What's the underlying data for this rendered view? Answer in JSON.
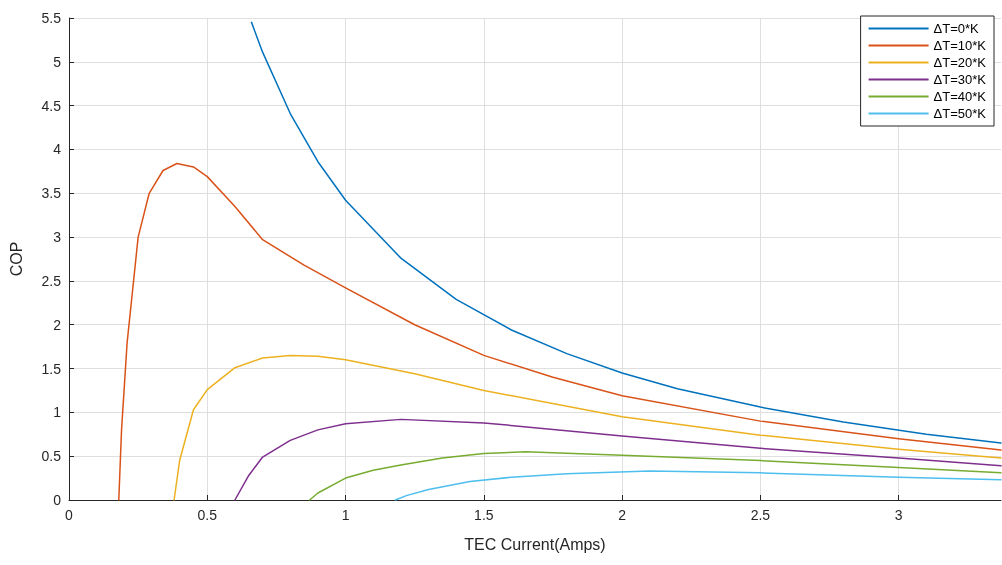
{
  "chart_data": {
    "type": "line",
    "xlabel": "TEC Current(Amps)",
    "ylabel": "COP",
    "xlim": [
      0,
      3.37
    ],
    "ylim": [
      0,
      5.5
    ],
    "xticks": [
      0,
      0.5,
      1,
      1.5,
      2,
      2.5,
      3
    ],
    "yticks": [
      0,
      0.5,
      1,
      1.5,
      2,
      2.5,
      3,
      3.5,
      4,
      4.5,
      5,
      5.5
    ],
    "grid": true,
    "legend": "top right",
    "line_style": "solid",
    "series": [
      {
        "name": "ΔT=0*K",
        "color": "#0072bd",
        "x": [
          0.66,
          0.7,
          0.8,
          0.9,
          1,
          1.2,
          1.4,
          1.6,
          1.8,
          2,
          2.2,
          2.5,
          2.8,
          3.1,
          3.37
        ],
        "values": [
          5.45,
          5.11,
          4.41,
          3.86,
          3.42,
          2.76,
          2.29,
          1.94,
          1.67,
          1.45,
          1.27,
          1.06,
          0.89,
          0.75,
          0.65
        ]
      },
      {
        "name": "ΔT=10*K",
        "color": "#d95319",
        "x": [
          0.18,
          0.19,
          0.21,
          0.25,
          0.29,
          0.34,
          0.39,
          0.45,
          0.5,
          0.6,
          0.7,
          0.85,
          1,
          1.25,
          1.5,
          1.75,
          2,
          2.5,
          3,
          3.37
        ],
        "values": [
          0,
          0.8,
          1.79,
          3,
          3.5,
          3.76,
          3.84,
          3.8,
          3.69,
          3.35,
          2.97,
          2.68,
          2.42,
          2,
          1.65,
          1.4,
          1.19,
          0.9,
          0.7,
          0.57
        ]
      },
      {
        "name": "ΔT=20*K",
        "color": "#edb120",
        "x": [
          0.38,
          0.4,
          0.45,
          0.5,
          0.6,
          0.7,
          0.8,
          0.9,
          1,
          1.25,
          1.5,
          2,
          2.5,
          3,
          3.37
        ],
        "values": [
          0,
          0.45,
          1.03,
          1.26,
          1.51,
          1.62,
          1.65,
          1.64,
          1.6,
          1.44,
          1.25,
          0.95,
          0.74,
          0.58,
          0.48
        ]
      },
      {
        "name": "ΔT=30*K",
        "color": "#7e2f8e",
        "x": [
          0.6,
          0.65,
          0.7,
          0.8,
          0.9,
          1,
          1.2,
          1.5,
          2,
          2.5,
          3,
          3.37
        ],
        "values": [
          0,
          0.28,
          0.49,
          0.68,
          0.8,
          0.87,
          0.92,
          0.88,
          0.73,
          0.59,
          0.48,
          0.39
        ]
      },
      {
        "name": "ΔT=40*K",
        "color": "#77ac30",
        "x": [
          0.87,
          0.9,
          1,
          1.1,
          1.2,
          1.35,
          1.5,
          1.65,
          2,
          2.5,
          3,
          3.37
        ],
        "values": [
          0,
          0.08,
          0.25,
          0.34,
          0.4,
          0.48,
          0.53,
          0.55,
          0.51,
          0.45,
          0.37,
          0.31
        ]
      },
      {
        "name": "ΔT=50*K",
        "color": "#4dbeee",
        "x": [
          1.18,
          1.22,
          1.3,
          1.45,
          1.6,
          1.8,
          2.1,
          2.5,
          3,
          3.37
        ],
        "values": [
          0,
          0.05,
          0.12,
          0.21,
          0.26,
          0.3,
          0.33,
          0.31,
          0.26,
          0.23
        ]
      }
    ]
  }
}
